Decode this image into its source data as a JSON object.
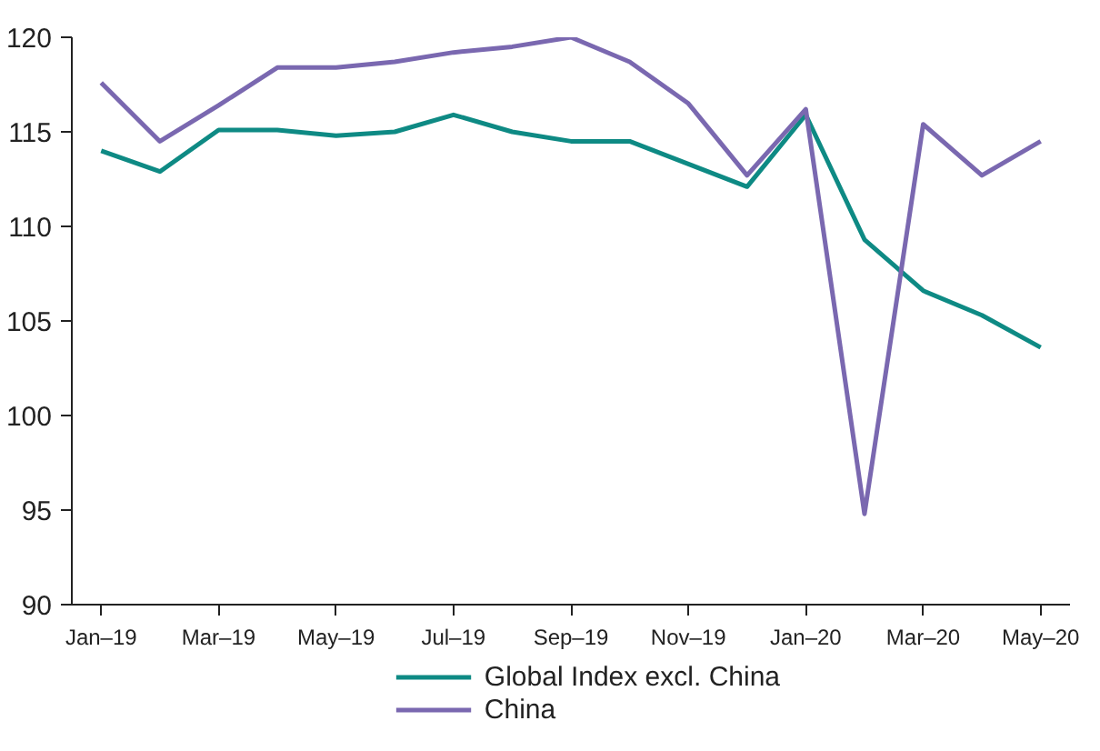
{
  "chart_data": {
    "type": "line",
    "categories": [
      "Jan–19",
      null,
      "Mar–19",
      null,
      "May–19",
      null,
      "Jul–19",
      null,
      "Sep–19",
      null,
      "Nov–19",
      null,
      "Jan–20",
      null,
      "Mar–20",
      null,
      "May–20"
    ],
    "series": [
      {
        "name": "Global Index excl. China",
        "color": "#0e8a84",
        "values": [
          114.0,
          112.9,
          115.1,
          115.1,
          114.8,
          115.0,
          115.9,
          115.0,
          114.5,
          114.5,
          113.3,
          112.1,
          115.9,
          109.3,
          106.6,
          105.3,
          103.6
        ]
      },
      {
        "name": "China",
        "color": "#7a68b0",
        "values": [
          117.6,
          114.5,
          116.4,
          118.4,
          118.4,
          118.7,
          119.2,
          119.5,
          120.0,
          118.7,
          116.5,
          112.7,
          116.2,
          94.8,
          115.4,
          112.7,
          114.5
        ]
      }
    ],
    "ylim": [
      90,
      120
    ],
    "yticks": [
      90,
      95,
      100,
      105,
      110,
      115,
      120
    ],
    "grid": false,
    "legend": "bottom",
    "marker": "none",
    "line_style": "solid"
  }
}
